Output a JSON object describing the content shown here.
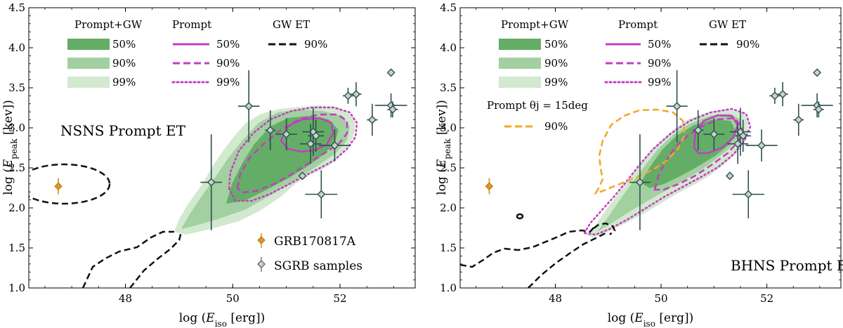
{
  "chart_data": [
    {
      "type": "scatter",
      "title": "NSNS Prompt ET",
      "xlabel": "log (E_iso [erg])",
      "ylabel": "log (E_peak [kev])",
      "xlim": [
        46.2,
        53.4
      ],
      "ylim": [
        1.0,
        4.5
      ],
      "xticks": [
        "48",
        "50",
        "52"
      ],
      "yticks": [
        "1.0",
        "1.5",
        "2.0",
        "2.5",
        "3.0",
        "3.5",
        "4.0",
        "4.5"
      ],
      "legend": {
        "headers": [
          "Prompt+GW",
          "Prompt",
          "GW ET"
        ],
        "prompt_gw": [
          "50%",
          "90%",
          "99%"
        ],
        "prompt": [
          "50%",
          "90%",
          "99%"
        ],
        "gw": [
          "90%"
        ]
      },
      "marker_legend": [
        "GRB170817A",
        "SGRB samples"
      ],
      "grb170817a": {
        "x": 46.75,
        "y": 2.27,
        "yerr": 0.1
      },
      "sgrb_samples": [
        {
          "x": 50.3,
          "y": 3.27,
          "xerr": 0.2,
          "yerr": 0.45
        },
        {
          "x": 50.7,
          "y": 2.97,
          "xerr": 0.1,
          "yerr": 0.25
        },
        {
          "x": 51.0,
          "y": 2.92,
          "xerr": 0.2,
          "yerr": 0.2
        },
        {
          "x": 51.5,
          "y": 2.95,
          "xerr": 0.2,
          "yerr": 0.3
        },
        {
          "x": 51.45,
          "y": 2.8,
          "xerr": 0.2,
          "yerr": 0.25
        },
        {
          "x": 51.55,
          "y": 2.9,
          "xerr": 0.15,
          "yerr": 0.2
        },
        {
          "x": 51.9,
          "y": 2.78,
          "xerr": 0.3,
          "yerr": 0.2
        },
        {
          "x": 49.6,
          "y": 2.32,
          "xerr": 0.2,
          "yerr": 0.6
        },
        {
          "x": 51.3,
          "y": 2.4,
          "xerr": 0.0,
          "yerr": 0.0
        },
        {
          "x": 51.65,
          "y": 2.17,
          "xerr": 0.3,
          "yerr": 0.3
        },
        {
          "x": 52.15,
          "y": 3.4,
          "xerr": 0.1,
          "yerr": 0.1
        },
        {
          "x": 52.3,
          "y": 3.42,
          "xerr": 0.1,
          "yerr": 0.15
        },
        {
          "x": 52.6,
          "y": 3.1,
          "xerr": 0.1,
          "yerr": 0.2
        },
        {
          "x": 52.95,
          "y": 3.28,
          "xerr": 0.3,
          "yerr": 0.15
        },
        {
          "x": 52.98,
          "y": 3.23,
          "xerr": 0.1,
          "yerr": 0.1
        },
        {
          "x": 52.95,
          "y": 3.69,
          "xerr": 0.0,
          "yerr": 0.0
        }
      ]
    },
    {
      "type": "scatter",
      "title": "BHNS Prompt ET",
      "xlabel": "log (E_iso [erg])",
      "ylabel": "log (E_peak [kev])",
      "xlim": [
        46.2,
        53.4
      ],
      "ylim": [
        1.0,
        4.5
      ],
      "xticks": [
        "48",
        "50",
        "52"
      ],
      "yticks": [
        "1.0",
        "1.5",
        "2.0",
        "2.5",
        "3.0",
        "3.5",
        "4.0",
        "4.5"
      ],
      "legend": {
        "headers": [
          "Prompt+GW",
          "Prompt",
          "GW ET"
        ],
        "prompt_gw": [
          "50%",
          "90%",
          "99%"
        ],
        "prompt": [
          "50%",
          "90%",
          "99%"
        ],
        "gw": [
          "90%"
        ],
        "theta_header": "Prompt θj = 15deg",
        "theta_level": "90%"
      },
      "grb170817a": {
        "x": 46.75,
        "y": 2.27,
        "yerr": 0.1
      },
      "sgrb_samples": [
        {
          "x": 50.3,
          "y": 3.27,
          "xerr": 0.2,
          "yerr": 0.45
        },
        {
          "x": 50.7,
          "y": 2.97,
          "xerr": 0.1,
          "yerr": 0.25
        },
        {
          "x": 51.0,
          "y": 2.92,
          "xerr": 0.2,
          "yerr": 0.2
        },
        {
          "x": 51.5,
          "y": 2.95,
          "xerr": 0.2,
          "yerr": 0.3
        },
        {
          "x": 51.45,
          "y": 2.8,
          "xerr": 0.2,
          "yerr": 0.25
        },
        {
          "x": 51.55,
          "y": 2.9,
          "xerr": 0.15,
          "yerr": 0.2
        },
        {
          "x": 51.9,
          "y": 2.78,
          "xerr": 0.3,
          "yerr": 0.2
        },
        {
          "x": 49.6,
          "y": 2.32,
          "xerr": 0.2,
          "yerr": 0.6
        },
        {
          "x": 51.3,
          "y": 2.4,
          "xerr": 0.0,
          "yerr": 0.0
        },
        {
          "x": 51.65,
          "y": 2.17,
          "xerr": 0.3,
          "yerr": 0.3
        },
        {
          "x": 52.15,
          "y": 3.4,
          "xerr": 0.1,
          "yerr": 0.1
        },
        {
          "x": 52.3,
          "y": 3.42,
          "xerr": 0.1,
          "yerr": 0.15
        },
        {
          "x": 52.6,
          "y": 3.1,
          "xerr": 0.1,
          "yerr": 0.2
        },
        {
          "x": 52.95,
          "y": 3.28,
          "xerr": 0.3,
          "yerr": 0.15
        },
        {
          "x": 52.98,
          "y": 3.23,
          "xerr": 0.1,
          "yerr": 0.1
        },
        {
          "x": 52.95,
          "y": 3.69,
          "xerr": 0.0,
          "yerr": 0.0
        }
      ]
    }
  ],
  "colors": {
    "c50": "#64ad66",
    "c90": "#a2d0a0",
    "c99": "#d2e9cf",
    "prompt": "#c43cc4",
    "gw": "#111111",
    "theta": "#f5a623",
    "grb": "#dd9a1e",
    "sgrb_edge": "#2f4f4f",
    "sgrb_fill": "#c7d3cf"
  }
}
